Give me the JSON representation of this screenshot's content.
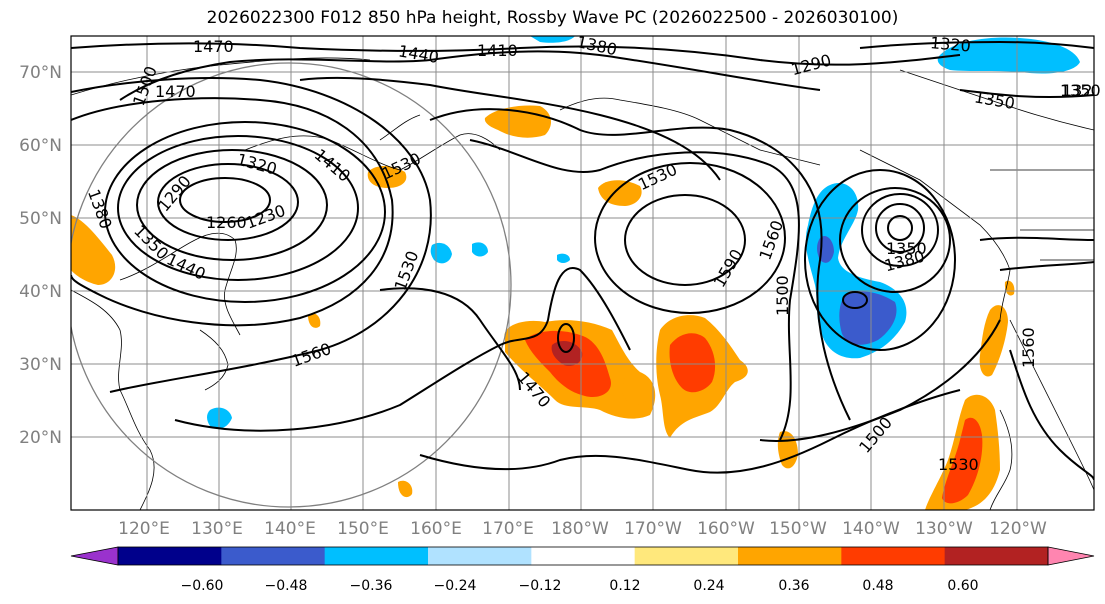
{
  "title": "2026022300 F012 850 hPa height, Rossby Wave PC (2026022500 - 2026030100)",
  "lon_labels": [
    "120°E",
    "130°E",
    "140°E",
    "150°E",
    "160°E",
    "170°E",
    "180°W",
    "170°W",
    "160°W",
    "150°W",
    "140°W",
    "130°W",
    "120°W"
  ],
  "lat_labels": [
    "20°N",
    "30°N",
    "40°N",
    "50°N",
    "60°N",
    "70°N"
  ],
  "colorbar": {
    "ticks": [
      "−0.60",
      "−0.48",
      "−0.36",
      "−0.24",
      "−0.12",
      "0.12",
      "0.24",
      "0.36",
      "0.48",
      "0.60"
    ],
    "colors": [
      "#9a32cd",
      "#00008b",
      "#3b5bcc",
      "#00bfff",
      "#b0e2ff",
      "#ffffff",
      "#ffe87c",
      "#ffa500",
      "#ff3c00",
      "#b22222",
      "#ff85b0"
    ]
  },
  "contour_labels": [
    {
      "text": "1470"
    },
    {
      "text": "1500"
    },
    {
      "text": "1470"
    },
    {
      "text": "1440"
    },
    {
      "text": "1410"
    },
    {
      "text": "1380"
    },
    {
      "text": "1290"
    },
    {
      "text": "1320"
    },
    {
      "text": "1350"
    },
    {
      "text": "1320"
    },
    {
      "text": "1290"
    },
    {
      "text": "1410"
    },
    {
      "text": "1380"
    },
    {
      "text": "1260"
    },
    {
      "text": "1230"
    },
    {
      "text": "1350"
    },
    {
      "text": "1440"
    },
    {
      "text": "1530"
    },
    {
      "text": "1530"
    },
    {
      "text": "1530"
    },
    {
      "text": "1560"
    },
    {
      "text": "1470"
    },
    {
      "text": "1590"
    },
    {
      "text": "1560"
    },
    {
      "text": "1500"
    },
    {
      "text": "1350"
    },
    {
      "text": "1380"
    },
    {
      "text": "1500"
    },
    {
      "text": "1560"
    },
    {
      "text": "1530"
    },
    {
      "text": "1350"
    },
    {
      "text": "132"
    }
  ]
}
